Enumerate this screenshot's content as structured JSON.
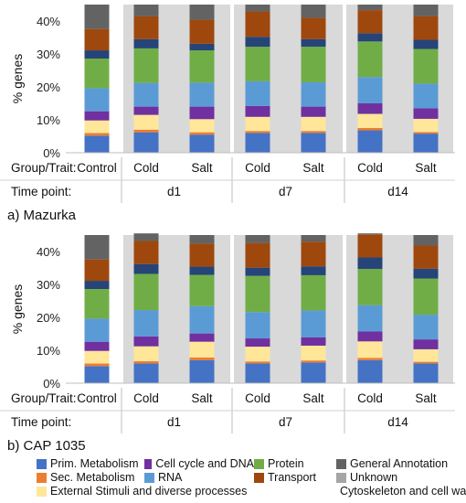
{
  "chart_data": [
    {
      "type": "bar",
      "stacked": true,
      "panel_label": "a) Mazurka",
      "ylabel": "% genes",
      "yticks": [
        "0%",
        "10%",
        "20%",
        "30%",
        "40%"
      ],
      "ylim": [
        0,
        45
      ],
      "row_labels": {
        "group": "Group/Trait:",
        "time": "Time point:"
      },
      "categories": [
        "Control",
        "Cold",
        "Salt",
        "Cold",
        "Salt",
        "Cold",
        "Salt"
      ],
      "time_points": [
        {
          "label": "d1",
          "span": [
            1,
            2
          ]
        },
        {
          "label": "d7",
          "span": [
            3,
            4
          ]
        },
        {
          "label": "d14",
          "span": [
            5,
            6
          ]
        }
      ],
      "series": [
        {
          "name": "Prim. Metabolism",
          "color": "#4472C4",
          "values": [
            5.2,
            6.2,
            5.5,
            6.0,
            6.0,
            6.8,
            5.8
          ]
        },
        {
          "name": "Sec. Metabolism",
          "color": "#ED7D31",
          "values": [
            0.8,
            0.8,
            0.7,
            0.6,
            0.6,
            0.7,
            0.5
          ]
        },
        {
          "name": "External Stimuli and diverse processes",
          "color": "#FFE699",
          "values": [
            3.8,
            4.5,
            4.0,
            4.3,
            4.3,
            4.3,
            4.0
          ]
        },
        {
          "name": "Cell cycle and DNA",
          "color": "#7030A0",
          "values": [
            2.8,
            2.5,
            3.8,
            3.3,
            3.1,
            3.2,
            3.2
          ]
        },
        {
          "name": "RNA",
          "color": "#5B9BD5",
          "values": [
            7.0,
            7.2,
            7.3,
            7.5,
            7.4,
            8.0,
            7.5
          ]
        },
        {
          "name": "Protein",
          "color": "#70AD47",
          "values": [
            9.0,
            10.5,
            9.8,
            10.5,
            10.8,
            10.8,
            10.5
          ]
        },
        {
          "name": "Cytoskeleton and cell wall",
          "color": "#264478",
          "values": [
            2.5,
            2.8,
            2.0,
            3.0,
            2.3,
            2.5,
            2.8
          ]
        },
        {
          "name": "Transport",
          "color": "#9E480E",
          "values": [
            6.5,
            7.0,
            7.3,
            7.7,
            6.5,
            7.0,
            7.2
          ]
        },
        {
          "name": "Unknown",
          "color": "#A5A5A5",
          "values": [
            0,
            0,
            0,
            0,
            0,
            0,
            0
          ]
        },
        {
          "name": "General Annotation",
          "color": "#636363",
          "values": [
            7.4,
            3.5,
            4.6,
            2.1,
            4.0,
            1.7,
            3.5
          ]
        }
      ]
    },
    {
      "type": "bar",
      "stacked": true,
      "panel_label": "b) CAP 1035",
      "ylabel": "% genes",
      "yticks": [
        "0%",
        "10%",
        "20%",
        "30%",
        "40%"
      ],
      "ylim": [
        0,
        45
      ],
      "row_labels": {
        "group": "Group/Trait:",
        "time": "Time point:"
      },
      "categories": [
        "Control",
        "Cold",
        "Salt",
        "Cold",
        "Salt",
        "Cold",
        "Salt"
      ],
      "time_points": [
        {
          "label": "d1",
          "span": [
            1,
            2
          ]
        },
        {
          "label": "d7",
          "span": [
            3,
            4
          ]
        },
        {
          "label": "d14",
          "span": [
            5,
            6
          ]
        }
      ],
      "series": [
        {
          "name": "Prim. Metabolism",
          "color": "#4472C4",
          "values": [
            5.2,
            6.0,
            7.0,
            6.0,
            6.3,
            7.0,
            6.0
          ]
        },
        {
          "name": "Sec. Metabolism",
          "color": "#ED7D31",
          "values": [
            0.8,
            0.7,
            0.8,
            0.6,
            0.6,
            0.7,
            0.5
          ]
        },
        {
          "name": "External Stimuli and diverse processes",
          "color": "#FFE699",
          "values": [
            3.8,
            4.5,
            4.8,
            4.5,
            4.5,
            5.0,
            3.8
          ]
        },
        {
          "name": "Cell cycle and DNA",
          "color": "#7030A0",
          "values": [
            2.8,
            3.0,
            2.5,
            2.5,
            2.5,
            3.0,
            3.0
          ]
        },
        {
          "name": "RNA",
          "color": "#5B9BD5",
          "values": [
            7.0,
            8.0,
            8.3,
            8.0,
            8.2,
            8.0,
            7.5
          ]
        },
        {
          "name": "Protein",
          "color": "#70AD47",
          "values": [
            9.0,
            11.0,
            9.5,
            11.0,
            10.7,
            11.0,
            11.0
          ]
        },
        {
          "name": "Cytoskeleton and cell wall",
          "color": "#264478",
          "values": [
            2.5,
            3.0,
            2.5,
            2.5,
            2.7,
            3.5,
            3.0
          ]
        },
        {
          "name": "Transport",
          "color": "#9E480E",
          "values": [
            6.5,
            7.0,
            7.0,
            7.5,
            7.5,
            7.0,
            7.0
          ]
        },
        {
          "name": "Unknown",
          "color": "#A5A5A5",
          "values": [
            0,
            0,
            0,
            0,
            0,
            0,
            0
          ]
        },
        {
          "name": "General Annotation",
          "color": "#636363",
          "values": [
            7.4,
            2.3,
            2.6,
            2.4,
            2.0,
            0.3,
            3.2
          ]
        }
      ]
    }
  ],
  "legend": [
    [
      "Prim. Metabolism",
      "Cell cycle and DNA",
      "Protein",
      "General Annotation"
    ],
    [
      "Sec. Metabolism",
      "RNA",
      "Transport",
      "Unknown"
    ],
    [
      "External Stimuli and diverse processes",
      "Cytoskeleton and cell wall"
    ]
  ],
  "legend_colors": {
    "Prim. Metabolism": "#4472C4",
    "Cell cycle and DNA": "#7030A0",
    "Protein": "#70AD47",
    "General Annotation": "#636363",
    "Sec. Metabolism": "#ED7D31",
    "RNA": "#5B9BD5",
    "Transport": "#9E480E",
    "Unknown": "#A5A5A5",
    "External Stimuli and diverse processes": "#FFE699",
    "Cytoskeleton and cell wall": "#264478"
  },
  "shade_color": "#D9D9D9"
}
